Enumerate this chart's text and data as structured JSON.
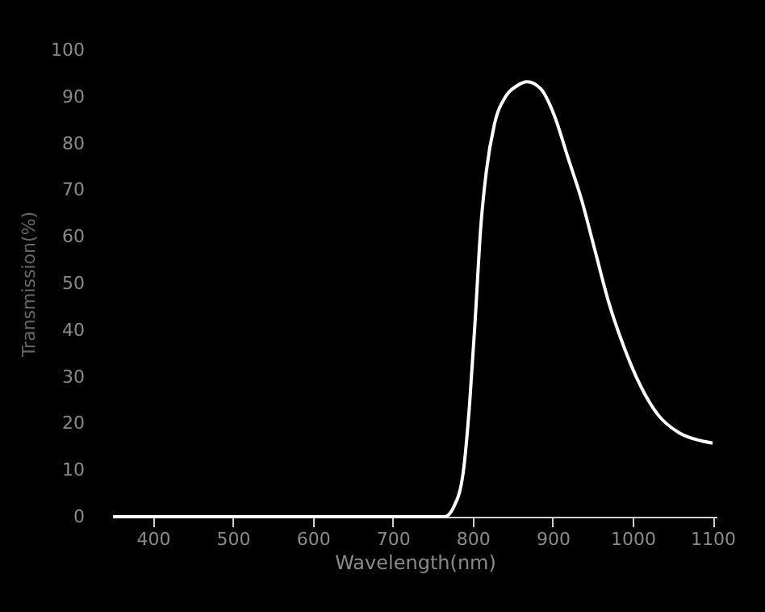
{
  "chart_data": {
    "type": "line",
    "xlabel": "Wavelength(nm)",
    "ylabel": "Transmission(%)",
    "x": [
      350,
      765,
      776,
      788,
      796,
      803,
      810,
      817,
      827,
      841,
      855,
      868,
      885,
      902,
      919,
      936,
      953,
      970,
      990,
      1010,
      1031,
      1058,
      1085,
      1100
    ],
    "series": [
      {
        "color": "#ffffff",
        "values": [
          0,
          0,
          2,
          9.4,
          24,
          42,
          62,
          74,
          84,
          90,
          92.3,
          93.2,
          91.7,
          86,
          77,
          68,
          57,
          46,
          36,
          28,
          22,
          18,
          16.3,
          15.8
        ]
      }
    ],
    "xlim": [
      350,
      1105
    ],
    "xticks": [
      400,
      500,
      600,
      700,
      800,
      900,
      1000,
      1100
    ],
    "ylim": [
      0,
      100
    ],
    "yticks": [
      0,
      10,
      20,
      30,
      40,
      50,
      60,
      70,
      80,
      90,
      100
    ],
    "grid": false,
    "legend": false,
    "marker": "none",
    "line_style": "solid"
  }
}
